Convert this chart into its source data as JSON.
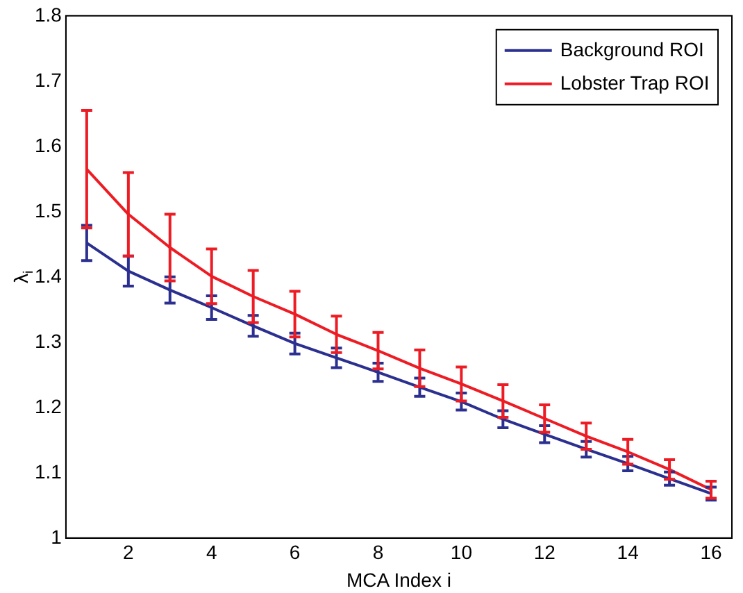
{
  "chart_data": {
    "type": "line",
    "xlabel": "MCA Index i",
    "ylabel": "λ$_{i}$",
    "x": [
      1,
      2,
      3,
      4,
      5,
      6,
      7,
      8,
      9,
      10,
      11,
      12,
      13,
      14,
      15,
      16
    ],
    "series": [
      {
        "name": "Background ROI",
        "color": "#2b2f8f",
        "values": [
          1.452,
          1.409,
          1.38,
          1.353,
          1.325,
          1.298,
          1.276,
          1.254,
          1.231,
          1.209,
          1.182,
          1.159,
          1.136,
          1.114,
          1.091,
          1.068
        ],
        "errors": [
          0.027,
          0.023,
          0.02,
          0.018,
          0.016,
          0.016,
          0.015,
          0.014,
          0.014,
          0.013,
          0.013,
          0.013,
          0.012,
          0.011,
          0.01,
          0.01
        ]
      },
      {
        "name": "Lobster Trap ROI",
        "color": "#ed1c24",
        "values": [
          1.565,
          1.496,
          1.445,
          1.401,
          1.37,
          1.343,
          1.312,
          1.287,
          1.26,
          1.236,
          1.21,
          1.183,
          1.156,
          1.132,
          1.105,
          1.074
        ],
        "errors": [
          0.09,
          0.064,
          0.051,
          0.042,
          0.04,
          0.035,
          0.028,
          0.028,
          0.028,
          0.026,
          0.025,
          0.021,
          0.02,
          0.019,
          0.015,
          0.013
        ]
      }
    ],
    "xlim": [
      0.5,
      16.5
    ],
    "xticks": [
      2,
      4,
      6,
      8,
      10,
      12,
      14,
      16
    ],
    "ylim": [
      1,
      1.8
    ],
    "yticks": [
      1,
      1.1,
      1.2,
      1.3,
      1.4,
      1.5,
      1.6,
      1.7,
      1.8
    ],
    "grid": false,
    "legend": "top right",
    "line_style": "solid"
  }
}
